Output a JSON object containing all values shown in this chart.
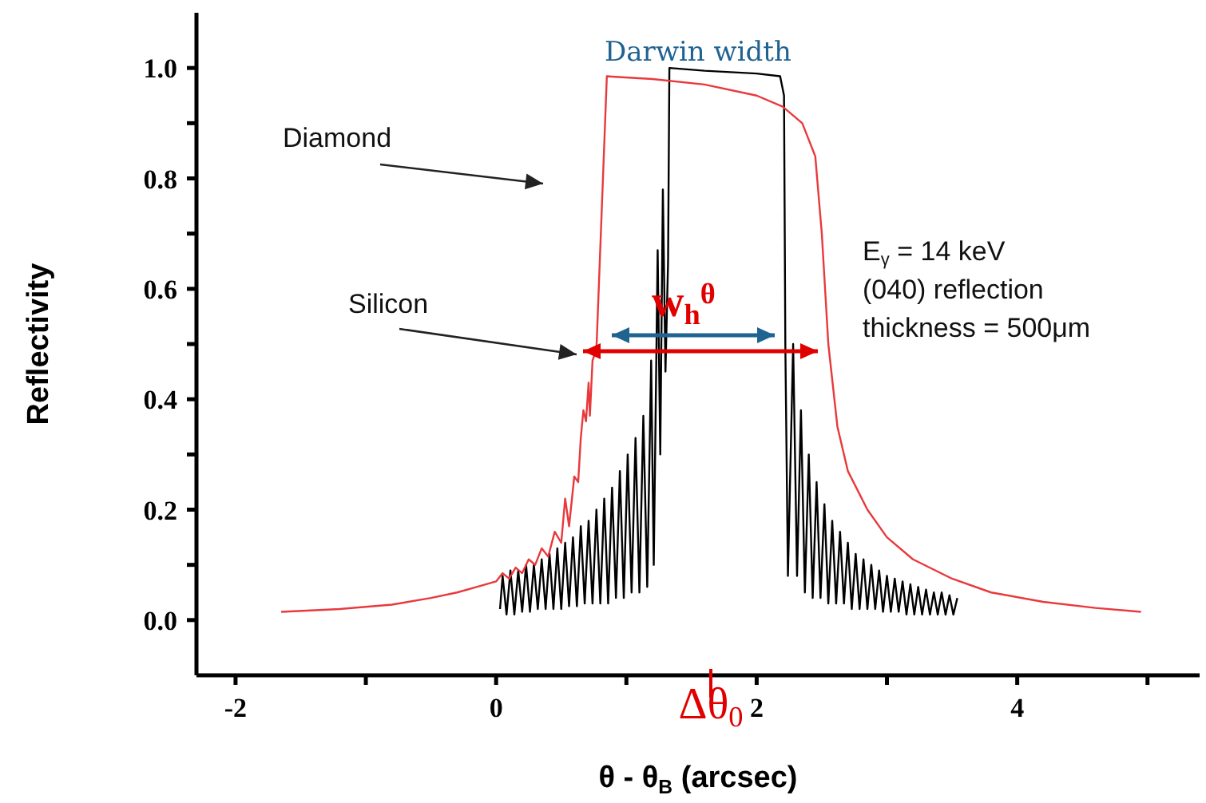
{
  "chart_data": {
    "type": "line",
    "xlabel": "θ - θ$_{B}$  (arcsec)",
    "ylabel": "Reflectivity",
    "xlim": [
      -2.3,
      5.4
    ],
    "ylim": [
      -0.1,
      1.1
    ],
    "xticks": [
      -2,
      {
        "value": -1,
        "label": null
      },
      0,
      {
        "value": 1,
        "label": null
      },
      2,
      {
        "value": 3,
        "label": null
      },
      4,
      {
        "value": 5,
        "label": null
      }
    ],
    "yticks": [
      {
        "value": 0,
        "label": "0.0"
      },
      {
        "value": 0.1,
        "label": null
      },
      {
        "value": 0.2,
        "label": "0.2"
      },
      {
        "value": 0.3,
        "label": null
      },
      {
        "value": 0.4,
        "label": "0.4"
      },
      {
        "value": 0.5,
        "label": null
      },
      {
        "value": 0.6,
        "label": "0.6"
      },
      {
        "value": 0.7,
        "label": null
      },
      {
        "value": 0.8,
        "label": "0.8"
      },
      {
        "value": 0.9,
        "label": null
      },
      {
        "value": 1,
        "label": "1.0"
      }
    ],
    "marker": "none",
    "line_style": "solid",
    "series": [
      {
        "name": "Diamond",
        "color": "#000000",
        "x": [
          0.03,
          0.05,
          0.08,
          0.11,
          0.14,
          0.17,
          0.2,
          0.23,
          0.26,
          0.29,
          0.32,
          0.35,
          0.38,
          0.41,
          0.44,
          0.47,
          0.5,
          0.53,
          0.56,
          0.59,
          0.62,
          0.65,
          0.68,
          0.71,
          0.74,
          0.77,
          0.8,
          0.83,
          0.86,
          0.89,
          0.92,
          0.95,
          0.98,
          1.01,
          1.04,
          1.07,
          1.1,
          1.13,
          1.16,
          1.19,
          1.21,
          1.24,
          1.26,
          1.28,
          1.3,
          1.32,
          1.33,
          1.6,
          2.0,
          2.18,
          2.21,
          2.22,
          2.24,
          2.28,
          2.31,
          2.34,
          2.37,
          2.4,
          2.43,
          2.46,
          2.49,
          2.52,
          2.55,
          2.58,
          2.61,
          2.64,
          2.67,
          2.7,
          2.73,
          2.76,
          2.79,
          2.82,
          2.85,
          2.88,
          2.91,
          2.94,
          2.97,
          3.0,
          3.03,
          3.06,
          3.09,
          3.12,
          3.15,
          3.18,
          3.21,
          3.24,
          3.27,
          3.3,
          3.33,
          3.36,
          3.39,
          3.42,
          3.45,
          3.48,
          3.51,
          3.54
        ],
        "values": [
          0.02,
          0.08,
          0.01,
          0.09,
          0.01,
          0.09,
          0.015,
          0.1,
          0.015,
          0.1,
          0.02,
          0.11,
          0.02,
          0.12,
          0.02,
          0.13,
          0.02,
          0.14,
          0.025,
          0.15,
          0.025,
          0.17,
          0.03,
          0.18,
          0.03,
          0.2,
          0.03,
          0.22,
          0.03,
          0.24,
          0.04,
          0.27,
          0.04,
          0.3,
          0.05,
          0.33,
          0.05,
          0.37,
          0.06,
          0.47,
          0.1,
          0.67,
          0.3,
          0.78,
          0.45,
          0.65,
          1.0,
          0.995,
          0.99,
          0.985,
          0.95,
          0.5,
          0.08,
          0.5,
          0.08,
          0.38,
          0.05,
          0.3,
          0.04,
          0.25,
          0.04,
          0.21,
          0.03,
          0.18,
          0.03,
          0.16,
          0.03,
          0.14,
          0.02,
          0.12,
          0.02,
          0.11,
          0.02,
          0.1,
          0.02,
          0.09,
          0.015,
          0.08,
          0.015,
          0.075,
          0.015,
          0.07,
          0.01,
          0.065,
          0.01,
          0.06,
          0.01,
          0.055,
          0.01,
          0.05,
          0.01,
          0.05,
          0.01,
          0.045,
          0.01,
          0.04
        ]
      },
      {
        "name": "Silicon",
        "color": "#e8393c",
        "x": [
          -1.65,
          -1.2,
          -0.8,
          -0.5,
          -0.3,
          -0.15,
          0,
          0.05,
          0.1,
          0.15,
          0.2,
          0.25,
          0.3,
          0.35,
          0.4,
          0.45,
          0.5,
          0.53,
          0.56,
          0.6,
          0.63,
          0.65,
          0.67,
          0.69,
          0.71,
          0.72,
          0.74,
          0.77,
          0.85,
          1.2,
          1.6,
          2.0,
          2.2,
          2.35,
          2.45,
          2.5,
          2.55,
          2.62,
          2.7,
          2.85,
          3.0,
          3.2,
          3.5,
          3.8,
          4.2,
          4.6,
          4.95
        ],
        "values": [
          0.015,
          0.02,
          0.028,
          0.04,
          0.05,
          0.06,
          0.07,
          0.085,
          0.075,
          0.095,
          0.085,
          0.11,
          0.1,
          0.13,
          0.115,
          0.16,
          0.14,
          0.22,
          0.17,
          0.26,
          0.25,
          0.33,
          0.38,
          0.36,
          0.43,
          0.37,
          0.47,
          0.49,
          0.985,
          0.98,
          0.97,
          0.95,
          0.93,
          0.9,
          0.84,
          0.7,
          0.5,
          0.35,
          0.27,
          0.2,
          0.15,
          0.11,
          0.075,
          0.05,
          0.033,
          0.022,
          0.015
        ]
      }
    ],
    "annotations": [
      "Darwin width",
      "E$_{γ}$ = 14 keV",
      "(040) reflection",
      "thickness = 500μm",
      "w$_{h}$$^{θ}$",
      "Δθ$_{0}$"
    ]
  }
}
